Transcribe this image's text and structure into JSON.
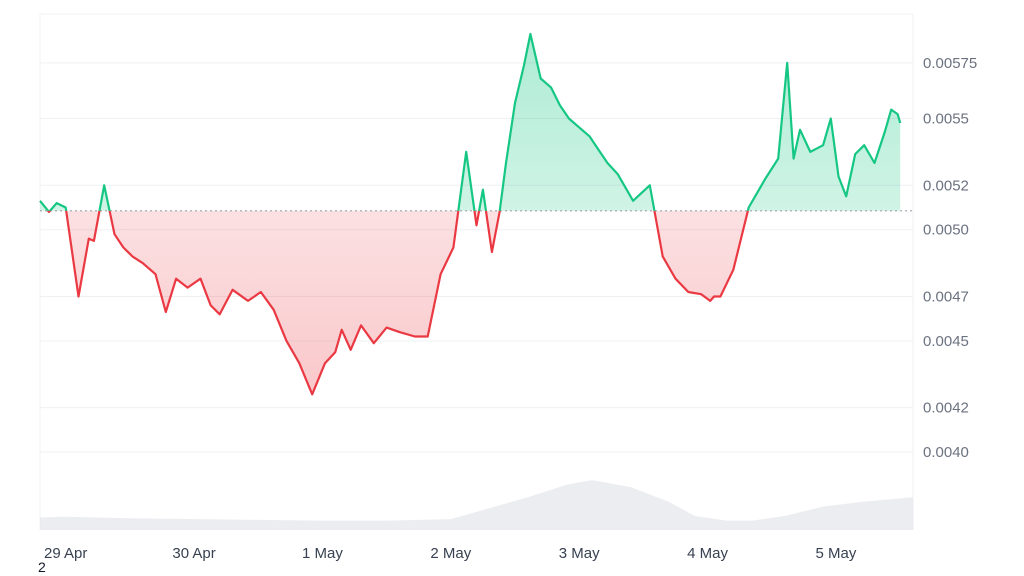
{
  "corner_label": "2",
  "colors": {
    "up_line": "#16c784",
    "down_line": "#ea3943",
    "up_fill": "#16c784",
    "down_fill": "#ea3943",
    "volume": "#e5e7eb",
    "grid": "#eef0f3",
    "baseline": "#9ca3af"
  },
  "chart_data": {
    "type": "area",
    "title": "",
    "xlabel": "",
    "ylabel": "",
    "xlim": [
      -0.2,
      6.6
    ],
    "ylim": [
      0.00365,
      0.00597
    ],
    "y_ticks": [
      0.004,
      0.0042,
      0.0045,
      0.0047,
      0.005,
      0.0052,
      0.0055,
      0.00575
    ],
    "y_tick_labels": [
      "0.0040",
      "0.0042",
      "0.0045",
      "0.0047",
      "0.0050",
      "0.0052",
      "0.0055",
      "0.00575"
    ],
    "x_ticks": [
      0,
      1,
      2,
      3,
      4,
      5,
      6
    ],
    "x_tick_labels": [
      "29 Apr",
      "30 Apr",
      "1 May",
      "2 May",
      "3 May",
      "4 May",
      "5 May"
    ],
    "grid": true,
    "baseline_value": 0.005085,
    "baseline_style": "dotted",
    "price_series": {
      "x": [
        -0.2,
        -0.13,
        -0.07,
        0.0,
        0.1,
        0.18,
        0.22,
        0.3,
        0.38,
        0.45,
        0.52,
        0.6,
        0.7,
        0.78,
        0.86,
        0.95,
        1.05,
        1.13,
        1.2,
        1.3,
        1.42,
        1.52,
        1.62,
        1.72,
        1.82,
        1.92,
        2.02,
        2.1,
        2.15,
        2.22,
        2.3,
        2.4,
        2.5,
        2.6,
        2.72,
        2.82,
        2.92,
        3.02,
        3.12,
        3.2,
        3.25,
        3.32,
        3.38,
        3.43,
        3.5,
        3.57,
        3.62,
        3.7,
        3.78,
        3.85,
        3.92,
        4.0,
        4.08,
        4.15,
        4.22,
        4.3,
        4.42,
        4.55,
        4.65,
        4.75,
        4.85,
        4.95,
        5.02,
        5.05,
        5.1,
        5.2,
        5.32,
        5.45,
        5.55,
        5.62,
        5.67,
        5.72,
        5.8,
        5.9,
        5.96,
        6.02,
        6.08,
        6.15,
        6.22,
        6.3,
        6.38,
        6.43,
        6.48,
        6.5
      ],
      "y": [
        0.00513,
        0.00508,
        0.00512,
        0.0051,
        0.0047,
        0.00496,
        0.00495,
        0.0052,
        0.00498,
        0.00492,
        0.00488,
        0.00485,
        0.0048,
        0.00463,
        0.00478,
        0.00474,
        0.00478,
        0.00466,
        0.00462,
        0.00473,
        0.00468,
        0.00472,
        0.00464,
        0.0045,
        0.0044,
        0.00426,
        0.0044,
        0.00445,
        0.00455,
        0.00446,
        0.00457,
        0.00449,
        0.00456,
        0.00454,
        0.00452,
        0.00452,
        0.0048,
        0.00492,
        0.00535,
        0.00502,
        0.00518,
        0.0049,
        0.00508,
        0.0053,
        0.00557,
        0.00574,
        0.00588,
        0.00568,
        0.00564,
        0.00556,
        0.0055,
        0.00546,
        0.00542,
        0.00536,
        0.0053,
        0.00525,
        0.00513,
        0.0052,
        0.00488,
        0.00478,
        0.00472,
        0.00471,
        0.00468,
        0.0047,
        0.0047,
        0.00482,
        0.0051,
        0.00523,
        0.00532,
        0.00575,
        0.00532,
        0.00545,
        0.00535,
        0.00538,
        0.0055,
        0.00524,
        0.00515,
        0.00534,
        0.00538,
        0.0053,
        0.00544,
        0.00554,
        0.00552,
        0.00548
      ]
    },
    "volume_series": {
      "x": [
        -0.2,
        0.0,
        0.5,
        1.0,
        1.5,
        2.0,
        2.5,
        3.0,
        3.3,
        3.6,
        3.9,
        4.1,
        4.4,
        4.7,
        4.9,
        5.15,
        5.35,
        5.6,
        5.9,
        6.2,
        6.6
      ],
      "relative": [
        0.16,
        0.17,
        0.15,
        0.14,
        0.13,
        0.12,
        0.12,
        0.14,
        0.28,
        0.42,
        0.58,
        0.64,
        0.55,
        0.36,
        0.18,
        0.12,
        0.12,
        0.18,
        0.3,
        0.36,
        0.42
      ]
    }
  }
}
